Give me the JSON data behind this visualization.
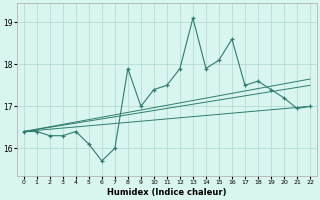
{
  "x": [
    0,
    1,
    2,
    3,
    4,
    5,
    6,
    7,
    8,
    9,
    10,
    11,
    12,
    13,
    14,
    15,
    16,
    17,
    18,
    19,
    20,
    21,
    22
  ],
  "main_line": [
    16.4,
    16.4,
    16.3,
    16.3,
    16.4,
    16.1,
    15.7,
    16.0,
    17.9,
    17.0,
    17.4,
    17.5,
    17.9,
    19.1,
    17.9,
    18.1,
    18.6,
    17.5,
    17.6,
    17.4,
    17.2,
    16.95,
    17.0
  ],
  "line_color": "#2e7d6e",
  "bg_color": "#d8f5ef",
  "grid_color": "#b0d8d0",
  "xlabel": "Humidex (Indice chaleur)",
  "ylabel_ticks": [
    16,
    17,
    18,
    19
  ],
  "xlim": [
    -0.5,
    22.5
  ],
  "ylim": [
    15.35,
    19.45
  ],
  "xticks": [
    0,
    1,
    2,
    3,
    4,
    5,
    6,
    7,
    8,
    9,
    10,
    11,
    12,
    13,
    14,
    15,
    16,
    17,
    18,
    19,
    20,
    21,
    22
  ],
  "reg_lines": [
    {
      "x0": 0,
      "y0": 16.4,
      "x1": 22,
      "y1": 17.0
    },
    {
      "x0": 0,
      "y0": 16.4,
      "x1": 22,
      "y1": 17.5
    },
    {
      "x0": 0,
      "y0": 16.4,
      "x1": 22,
      "y1": 17.65
    }
  ]
}
